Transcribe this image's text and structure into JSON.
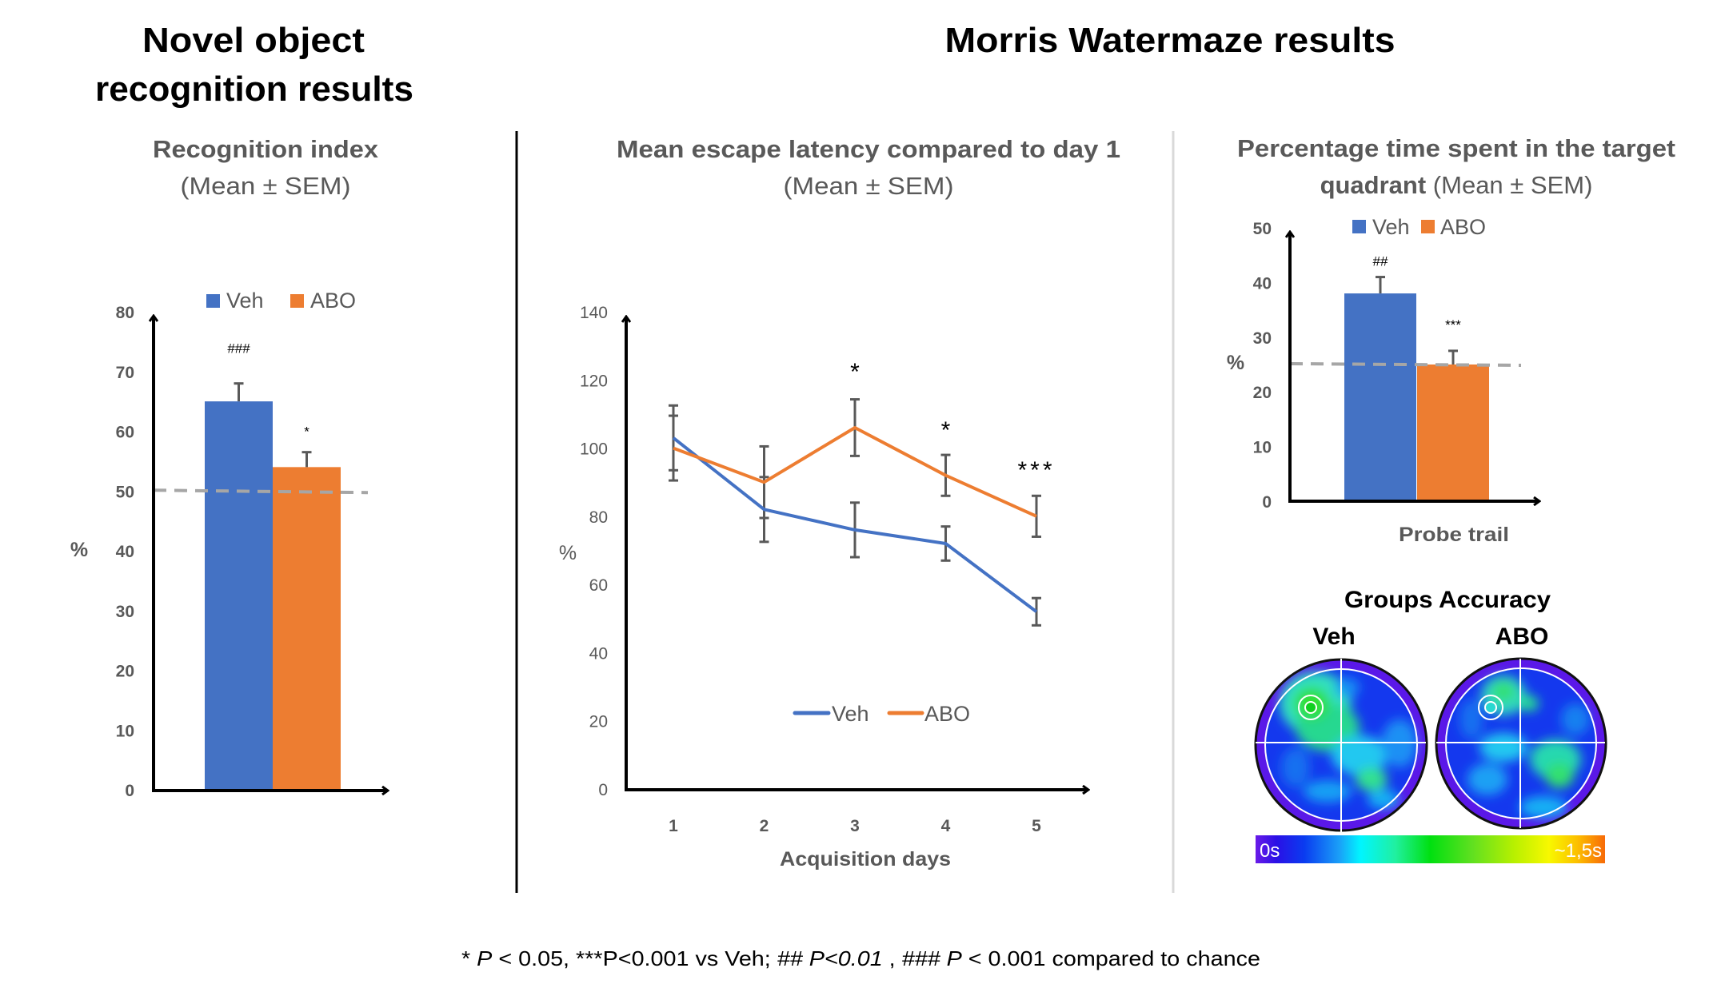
{
  "titles": {
    "left_line1": "Novel object",
    "left_line2": "recognition results",
    "right": "Morris Watermaze results"
  },
  "colors": {
    "veh": "#4472C4",
    "abo": "#ED7D31",
    "errorbar": "#595959",
    "chance_line": "#A6A6A6",
    "text_gray": "#595959"
  },
  "chart_data": [
    {
      "type": "bar",
      "title": "Recognition index",
      "subtitle": "(Mean ± SEM)",
      "ylabel": "%",
      "xlabel": "",
      "ylim": [
        0,
        80
      ],
      "yticks": [
        "0",
        "10",
        "20",
        "30",
        "40",
        "50",
        "60",
        "70",
        "80"
      ],
      "legend": [
        "Veh",
        "ABO"
      ],
      "legend_position": "top",
      "series": [
        {
          "name": "Veh",
          "value": 65,
          "sem": 3,
          "annotation": "###"
        },
        {
          "name": "ABO",
          "value": 54,
          "sem": 2.5,
          "annotation": "*"
        }
      ],
      "reference_line": {
        "value": 50,
        "style": "dashed",
        "meaning": "chance"
      }
    },
    {
      "type": "line",
      "title": "Mean escape latency compared to day 1",
      "subtitle": "(Mean ± SEM)",
      "ylabel": "%",
      "xlabel": "Acquisition days",
      "x": [
        "1",
        "2",
        "3",
        "4",
        "5"
      ],
      "ylim": [
        0,
        140
      ],
      "yticks": [
        "0",
        "20",
        "40",
        "60",
        "80",
        "100",
        "120",
        "140"
      ],
      "legend": [
        "Veh",
        "ABO"
      ],
      "legend_position": "bottom-center",
      "series": [
        {
          "name": "Veh",
          "values": [
            103,
            82,
            76,
            72,
            52
          ],
          "sem": [
            9.5,
            9.5,
            8,
            5,
            4
          ]
        },
        {
          "name": "ABO",
          "values": [
            100,
            90,
            106,
            92,
            80
          ],
          "sem": [
            9.5,
            10.5,
            8.3,
            6,
            6
          ]
        }
      ],
      "annotations": [
        {
          "x": "3",
          "text": "*"
        },
        {
          "x": "4",
          "text": "*"
        },
        {
          "x": "5",
          "text": "***"
        }
      ]
    },
    {
      "type": "bar",
      "title_bold": "Percentage time spent in the target",
      "title_line2_bold": "quadrant",
      "title_line2_rest": " (Mean ± SEM)",
      "ylabel": "%",
      "xlabel": "Probe trail",
      "ylim": [
        0,
        50
      ],
      "yticks": [
        "0",
        "10",
        "20",
        "30",
        "40",
        "50"
      ],
      "legend": [
        "Veh",
        "ABO"
      ],
      "legend_position": "top",
      "series": [
        {
          "name": "Veh",
          "value": 38,
          "sem": 3,
          "annotation": "##"
        },
        {
          "name": "ABO",
          "value": 25,
          "sem": 2.5,
          "annotation": "***"
        }
      ],
      "reference_line": {
        "value": 25,
        "style": "dashed",
        "meaning": "chance"
      }
    }
  ],
  "heatmap": {
    "title": "Groups Accuracy",
    "groups": [
      "Veh",
      "ABO"
    ],
    "colorbar_min": "0s",
    "colorbar_max": "~1,5s"
  },
  "footnote": {
    "p1_star": "* ",
    "p1_P": "P",
    "p1_rest": " < 0.05,  ***P<0.001 vs Veh; ",
    "p2_italic": "## P<0.01",
    "p2_sep": " , ",
    "p3_hash": "### ",
    "p3_P": "P",
    "p3_rest": " < 0.001 compared to chance"
  }
}
